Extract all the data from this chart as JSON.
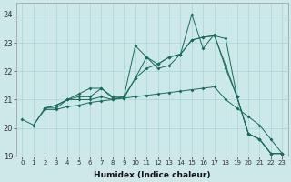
{
  "xlabel": "Humidex (Indice chaleur)",
  "bg_color": "#cce8e8",
  "line_color": "#1a6b5a",
  "grid_color": "#aad4d4",
  "xlim": [
    -0.5,
    23.5
  ],
  "ylim": [
    19.0,
    24.4
  ],
  "yticks": [
    19,
    20,
    21,
    22,
    23,
    24
  ],
  "xticks": [
    0,
    1,
    2,
    3,
    4,
    5,
    6,
    7,
    8,
    9,
    10,
    11,
    12,
    13,
    14,
    15,
    16,
    17,
    18,
    19,
    20,
    21,
    22,
    23
  ],
  "series": [
    {
      "x": [
        0,
        1,
        2,
        3,
        4,
        5,
        6,
        7,
        8,
        9,
        10,
        11,
        12,
        13,
        14,
        15,
        16,
        17,
        18,
        19,
        20,
        21,
        22,
        23
      ],
      "y": [
        20.3,
        20.1,
        20.65,
        20.65,
        20.75,
        20.8,
        20.9,
        20.95,
        21.0,
        21.05,
        21.1,
        21.15,
        21.2,
        21.25,
        21.3,
        21.35,
        21.4,
        21.45,
        21.0,
        20.7,
        20.4,
        20.1,
        19.6,
        19.1
      ]
    },
    {
      "x": [
        1,
        2,
        3,
        4,
        5,
        6,
        7,
        8,
        9,
        10,
        11,
        12,
        13,
        14,
        15,
        16,
        17,
        18,
        19,
        20,
        21,
        22,
        23
      ],
      "y": [
        20.1,
        20.7,
        20.8,
        21.0,
        21.2,
        21.4,
        21.4,
        21.05,
        21.05,
        21.75,
        22.1,
        22.25,
        22.5,
        22.6,
        23.1,
        23.2,
        23.25,
        23.15,
        21.1,
        19.8,
        19.6,
        19.1,
        19.1
      ]
    },
    {
      "x": [
        2,
        3,
        4,
        5,
        6,
        7,
        8,
        9,
        10,
        11,
        12,
        13,
        14,
        15,
        16,
        17,
        18,
        19,
        20,
        21,
        22,
        23
      ],
      "y": [
        20.7,
        20.8,
        21.0,
        21.1,
        21.1,
        21.4,
        21.1,
        21.1,
        21.75,
        22.5,
        22.25,
        22.5,
        22.6,
        23.1,
        23.2,
        23.25,
        22.2,
        21.1,
        19.8,
        19.6,
        19.1,
        19.1
      ]
    },
    {
      "x": [
        2,
        3,
        4,
        5,
        6,
        7,
        8,
        9,
        10,
        11,
        12,
        13,
        14,
        15,
        16,
        17,
        18,
        19,
        20,
        21,
        22,
        23
      ],
      "y": [
        20.7,
        20.7,
        21.0,
        21.0,
        21.0,
        21.1,
        21.0,
        21.1,
        22.9,
        22.5,
        22.1,
        22.2,
        22.6,
        24.0,
        22.8,
        23.3,
        22.1,
        21.1,
        19.8,
        19.6,
        19.1,
        19.1
      ]
    }
  ]
}
